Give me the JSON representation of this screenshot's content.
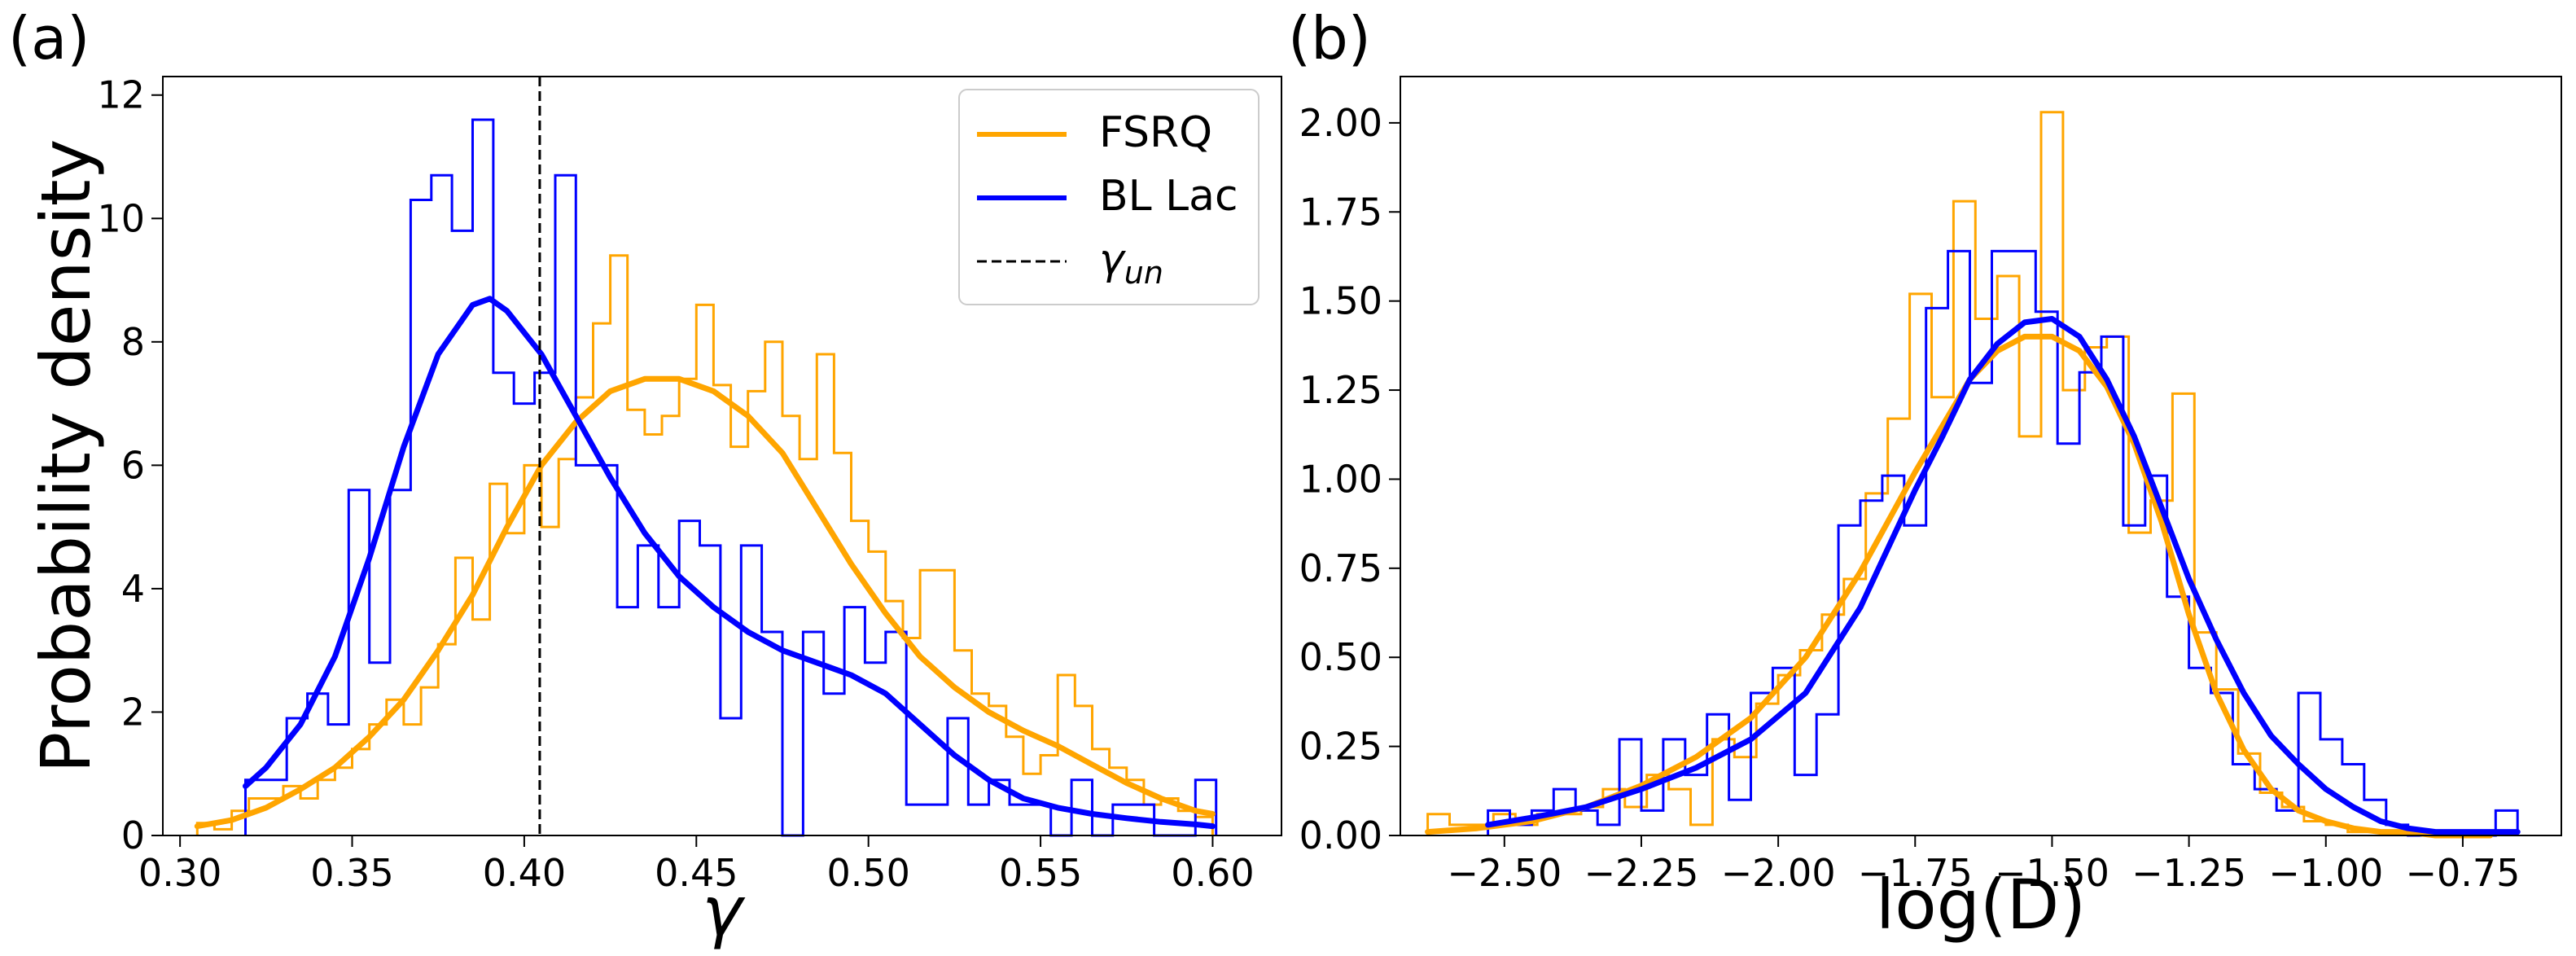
{
  "chart_data": [
    {
      "panel_label": "(a)",
      "type": "histogram+kde",
      "xlabel": "γ",
      "ylabel": "Probability density",
      "xlim": [
        0.295,
        0.62
      ],
      "ylim": [
        0,
        12.3
      ],
      "xticks": [
        0.3,
        0.35,
        0.4,
        0.45,
        0.5,
        0.55,
        0.6
      ],
      "xtick_labels": [
        "0.30",
        "0.35",
        "0.40",
        "0.45",
        "0.50",
        "0.55",
        "0.60"
      ],
      "yticks": [
        0,
        2,
        4,
        6,
        8,
        10,
        12
      ],
      "ytick_labels": [
        "0",
        "2",
        "4",
        "6",
        "8",
        "10",
        "12"
      ],
      "vline": {
        "name": "γ_un",
        "x": 0.4045,
        "style": "dashed",
        "color": "#000000"
      },
      "legend": {
        "position": "top-right",
        "entries": [
          {
            "label": "FSRQ",
            "color": "#FFA500",
            "style": "solid"
          },
          {
            "label": "BL Lac",
            "color": "#0000FF",
            "style": "solid"
          },
          {
            "label": "γ",
            "label_sub": "un",
            "color": "#000000",
            "style": "dashed"
          }
        ]
      },
      "series": [
        {
          "name": "FSRQ",
          "color": "#FFA500",
          "hist": {
            "edges": [
              0.305,
              0.31,
              0.315,
              0.32,
              0.325,
              0.33,
              0.335,
              0.34,
              0.345,
              0.35,
              0.355,
              0.36,
              0.365,
              0.37,
              0.375,
              0.38,
              0.385,
              0.39,
              0.395,
              0.4,
              0.405,
              0.41,
              0.415,
              0.42,
              0.425,
              0.43,
              0.435,
              0.44,
              0.445,
              0.45,
              0.455,
              0.46,
              0.465,
              0.47,
              0.475,
              0.48,
              0.485,
              0.49,
              0.495,
              0.5,
              0.505,
              0.51,
              0.515,
              0.52,
              0.525,
              0.53,
              0.535,
              0.54,
              0.545,
              0.55,
              0.555,
              0.56,
              0.565,
              0.57,
              0.575,
              0.58,
              0.585,
              0.59,
              0.595,
              0.6
            ],
            "heights": [
              0.2,
              0.1,
              0.4,
              0.6,
              0.6,
              0.8,
              0.6,
              0.9,
              1.1,
              1.4,
              1.8,
              2.2,
              1.8,
              2.4,
              3.1,
              4.5,
              3.5,
              5.7,
              4.9,
              6.0,
              5.0,
              6.1,
              7.1,
              8.3,
              9.4,
              6.9,
              6.5,
              6.8,
              7.4,
              8.6,
              7.3,
              6.3,
              7.2,
              8.0,
              6.8,
              6.1,
              7.8,
              6.2,
              5.1,
              4.6,
              3.8,
              3.2,
              4.3,
              4.3,
              3.0,
              2.3,
              2.1,
              1.6,
              1.0,
              1.3,
              2.6,
              2.1,
              1.4,
              1.1,
              0.9,
              0.5,
              0.6,
              0.4,
              0.3
            ]
          },
          "kde": {
            "x": [
              0.305,
              0.315,
              0.325,
              0.335,
              0.345,
              0.355,
              0.365,
              0.375,
              0.385,
              0.395,
              0.405,
              0.415,
              0.425,
              0.435,
              0.445,
              0.455,
              0.465,
              0.475,
              0.485,
              0.495,
              0.505,
              0.515,
              0.525,
              0.535,
              0.545,
              0.555,
              0.565,
              0.575,
              0.585,
              0.595,
              0.6
            ],
            "y": [
              0.15,
              0.25,
              0.45,
              0.75,
              1.1,
              1.6,
              2.2,
              3.0,
              3.9,
              5.0,
              6.0,
              6.7,
              7.2,
              7.4,
              7.4,
              7.2,
              6.8,
              6.2,
              5.3,
              4.4,
              3.6,
              2.9,
              2.4,
              2.0,
              1.7,
              1.45,
              1.15,
              0.85,
              0.6,
              0.4,
              0.35
            ]
          }
        },
        {
          "name": "BL Lac",
          "color": "#0000FF",
          "hist": {
            "edges": [
              0.319,
              0.325,
              0.331,
              0.337,
              0.343,
              0.349,
              0.355,
              0.361,
              0.367,
              0.373,
              0.379,
              0.385,
              0.391,
              0.397,
              0.403,
              0.409,
              0.415,
              0.421,
              0.427,
              0.433,
              0.439,
              0.445,
              0.451,
              0.457,
              0.463,
              0.469,
              0.475,
              0.481,
              0.487,
              0.493,
              0.499,
              0.505,
              0.511,
              0.517,
              0.523,
              0.529,
              0.535,
              0.541,
              0.547,
              0.553,
              0.559,
              0.565,
              0.571,
              0.577,
              0.583,
              0.589,
              0.595,
              0.601
            ],
            "heights": [
              0.9,
              0.9,
              1.9,
              2.3,
              1.8,
              5.6,
              2.8,
              5.6,
              10.3,
              10.7,
              9.8,
              11.6,
              7.5,
              7.0,
              7.5,
              10.7,
              6.0,
              6.0,
              3.7,
              4.7,
              3.7,
              5.1,
              4.7,
              1.9,
              4.7,
              3.3,
              0.0,
              3.3,
              2.3,
              3.7,
              2.8,
              3.3,
              0.5,
              0.5,
              1.9,
              0.5,
              0.9,
              0.5,
              0.5,
              0.0,
              0.9,
              0.0,
              0.5,
              0.5,
              0.0,
              0.0,
              0.9
            ]
          },
          "kde": {
            "x": [
              0.319,
              0.325,
              0.335,
              0.345,
              0.355,
              0.365,
              0.375,
              0.385,
              0.39,
              0.395,
              0.405,
              0.415,
              0.425,
              0.435,
              0.445,
              0.455,
              0.465,
              0.475,
              0.485,
              0.495,
              0.505,
              0.515,
              0.525,
              0.535,
              0.545,
              0.555,
              0.565,
              0.575,
              0.585,
              0.595,
              0.6
            ],
            "y": [
              0.8,
              1.1,
              1.8,
              2.9,
              4.5,
              6.3,
              7.8,
              8.6,
              8.7,
              8.5,
              7.8,
              6.8,
              5.8,
              4.9,
              4.2,
              3.7,
              3.3,
              3.0,
              2.8,
              2.6,
              2.3,
              1.8,
              1.3,
              0.9,
              0.6,
              0.45,
              0.35,
              0.28,
              0.22,
              0.18,
              0.15
            ]
          }
        }
      ]
    },
    {
      "panel_label": "(b)",
      "type": "histogram+kde",
      "xlabel": "log(D)",
      "ylabel": "",
      "xlim": [
        -2.69,
        -0.57
      ],
      "ylim": [
        0,
        2.13
      ],
      "xticks": [
        -2.5,
        -2.25,
        -2.0,
        -1.75,
        -1.5,
        -1.25,
        -1.0,
        -0.75
      ],
      "xtick_labels": [
        "−2.50",
        "−2.25",
        "−2.00",
        "−1.75",
        "−1.50",
        "−1.25",
        "−1.00",
        "−0.75"
      ],
      "yticks": [
        0,
        0.25,
        0.5,
        0.75,
        1.0,
        1.25,
        1.5,
        1.75,
        2.0
      ],
      "ytick_labels": [
        "0.00",
        "0.25",
        "0.50",
        "0.75",
        "1.00",
        "1.25",
        "1.50",
        "1.75",
        "2.00"
      ],
      "series": [
        {
          "name": "FSRQ",
          "color": "#FFA500",
          "hist": {
            "edges": [
              -2.64,
              -2.6,
              -2.56,
              -2.52,
              -2.48,
              -2.44,
              -2.4,
              -2.36,
              -2.32,
              -2.28,
              -2.24,
              -2.2,
              -2.16,
              -2.12,
              -2.08,
              -2.04,
              -2.0,
              -1.96,
              -1.92,
              -1.88,
              -1.84,
              -1.8,
              -1.76,
              -1.72,
              -1.68,
              -1.64,
              -1.6,
              -1.56,
              -1.52,
              -1.48,
              -1.44,
              -1.4,
              -1.36,
              -1.32,
              -1.28,
              -1.24,
              -1.2,
              -1.16,
              -1.12,
              -1.08,
              -1.04,
              -1.0,
              -0.96,
              -0.92,
              -0.88,
              -0.84,
              -0.8,
              -0.76
            ],
            "heights": [
              0.06,
              0.03,
              0.03,
              0.06,
              0.03,
              0.06,
              0.06,
              0.08,
              0.13,
              0.08,
              0.17,
              0.13,
              0.03,
              0.27,
              0.22,
              0.37,
              0.45,
              0.52,
              0.62,
              0.72,
              0.96,
              1.17,
              1.52,
              1.23,
              1.78,
              1.45,
              1.57,
              1.12,
              2.03,
              1.25,
              1.37,
              1.4,
              0.85,
              0.94,
              1.24,
              0.57,
              0.41,
              0.23,
              0.12,
              0.08,
              0.04,
              0.03,
              0.01,
              0.01,
              0.01,
              0.0,
              0.0
            ]
          },
          "kde": {
            "x": [
              -2.64,
              -2.55,
              -2.45,
              -2.35,
              -2.25,
              -2.15,
              -2.05,
              -1.95,
              -1.85,
              -1.75,
              -1.7,
              -1.65,
              -1.6,
              -1.55,
              -1.5,
              -1.45,
              -1.4,
              -1.35,
              -1.3,
              -1.25,
              -1.2,
              -1.15,
              -1.1,
              -1.05,
              -1.0,
              -0.95,
              -0.9,
              -0.85,
              -0.8,
              -0.75,
              -0.7
            ],
            "y": [
              0.01,
              0.02,
              0.04,
              0.08,
              0.14,
              0.22,
              0.33,
              0.5,
              0.74,
              1.02,
              1.15,
              1.28,
              1.36,
              1.4,
              1.4,
              1.36,
              1.26,
              1.1,
              0.88,
              0.62,
              0.4,
              0.24,
              0.13,
              0.07,
              0.04,
              0.02,
              0.01,
              0.01,
              0.0,
              0.0,
              0.0
            ]
          }
        },
        {
          "name": "BL Lac",
          "color": "#0000FF",
          "hist": {
            "edges": [
              -2.53,
              -2.49,
              -2.45,
              -2.41,
              -2.37,
              -2.33,
              -2.29,
              -2.25,
              -2.21,
              -2.17,
              -2.13,
              -2.09,
              -2.05,
              -2.01,
              -1.97,
              -1.93,
              -1.89,
              -1.85,
              -1.81,
              -1.77,
              -1.73,
              -1.69,
              -1.65,
              -1.61,
              -1.57,
              -1.53,
              -1.49,
              -1.45,
              -1.41,
              -1.37,
              -1.33,
              -1.29,
              -1.25,
              -1.21,
              -1.17,
              -1.13,
              -1.09,
              -1.05,
              -1.01,
              -0.97,
              -0.93,
              -0.89,
              -0.85,
              -0.81,
              -0.77,
              -0.73,
              -0.69,
              -0.65
            ],
            "heights": [
              0.07,
              0.03,
              0.07,
              0.13,
              0.07,
              0.03,
              0.27,
              0.07,
              0.27,
              0.17,
              0.34,
              0.1,
              0.4,
              0.47,
              0.17,
              0.34,
              0.87,
              0.94,
              1.01,
              0.87,
              1.48,
              1.64,
              1.27,
              1.64,
              1.64,
              1.47,
              1.1,
              1.3,
              1.4,
              0.87,
              1.01,
              0.67,
              0.47,
              0.4,
              0.2,
              0.13,
              0.07,
              0.4,
              0.27,
              0.2,
              0.1,
              0.03,
              0.0,
              0.0,
              0.0,
              0.0,
              0.07
            ]
          },
          "kde": {
            "x": [
              -2.53,
              -2.45,
              -2.35,
              -2.25,
              -2.15,
              -2.05,
              -1.95,
              -1.85,
              -1.75,
              -1.7,
              -1.65,
              -1.6,
              -1.55,
              -1.5,
              -1.45,
              -1.4,
              -1.35,
              -1.3,
              -1.25,
              -1.2,
              -1.15,
              -1.1,
              -1.05,
              -1.0,
              -0.95,
              -0.9,
              -0.85,
              -0.8,
              -0.75,
              -0.7,
              -0.65
            ],
            "y": [
              0.03,
              0.05,
              0.08,
              0.13,
              0.19,
              0.27,
              0.4,
              0.64,
              0.97,
              1.12,
              1.28,
              1.38,
              1.44,
              1.45,
              1.4,
              1.28,
              1.12,
              0.92,
              0.72,
              0.55,
              0.4,
              0.28,
              0.2,
              0.13,
              0.08,
              0.04,
              0.02,
              0.01,
              0.01,
              0.01,
              0.01
            ]
          }
        }
      ]
    }
  ]
}
